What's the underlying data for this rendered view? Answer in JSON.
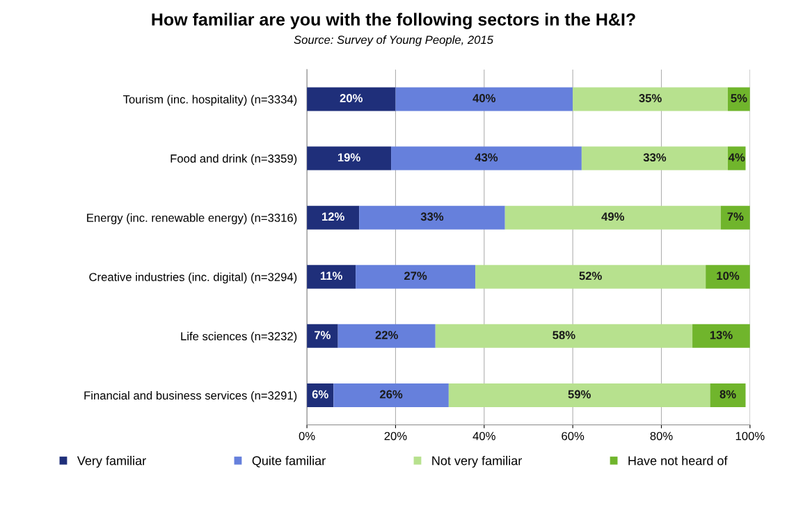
{
  "chart_data": {
    "type": "bar",
    "orientation": "horizontal",
    "stacked": true,
    "title": "How familiar are you with the following sectors in the H&I?",
    "annotations": [
      "Source: Survey of Young People, 2015"
    ],
    "categories": [
      "Tourism (inc. hospitality) (n=3334)",
      "Food and drink (n=3359)",
      "Energy (inc. renewable energy) (n=3316)",
      "Creative industries (inc. digital) (n=3294)",
      "Life sciences (n=3232)",
      "Financial and business services (n=3291)"
    ],
    "series": [
      {
        "name": "Very familiar",
        "color": "#1f2f7a",
        "values": [
          20,
          19,
          11.8,
          11,
          7,
          6
        ],
        "value_labels": [
          "20%",
          "19%",
          "12%",
          "11%",
          "7%",
          "6%"
        ]
      },
      {
        "name": "Quite familiar",
        "color": "#6680dc",
        "values": [
          40,
          43,
          32.9,
          27,
          22,
          26
        ],
        "value_labels": [
          "40%",
          "43%",
          "33%",
          "27%",
          "22%",
          "26%"
        ]
      },
      {
        "name": "Not very familiar",
        "color": "#b7e18e",
        "values": [
          35,
          33,
          48.7,
          52,
          58,
          59
        ],
        "value_labels": [
          "35%",
          "33%",
          "49%",
          "52%",
          "58%",
          "59%"
        ]
      },
      {
        "name": "Have not heard of",
        "color": "#70b52c",
        "values": [
          5,
          4,
          6.6,
          10,
          13,
          8
        ],
        "value_labels": [
          "5%",
          "4%",
          "7%",
          "10%",
          "13%",
          "8%"
        ]
      }
    ],
    "xlim": [
      0,
      100
    ],
    "xticks": [
      {
        "value": 0,
        "label": "0%"
      },
      {
        "value": 20,
        "label": "20%"
      },
      {
        "value": 40,
        "label": "40%"
      },
      {
        "value": 60,
        "label": "60%"
      },
      {
        "value": 80,
        "label": "80%"
      },
      {
        "value": 100,
        "label": "100%"
      }
    ],
    "grid": "x",
    "legend": "bottom"
  }
}
